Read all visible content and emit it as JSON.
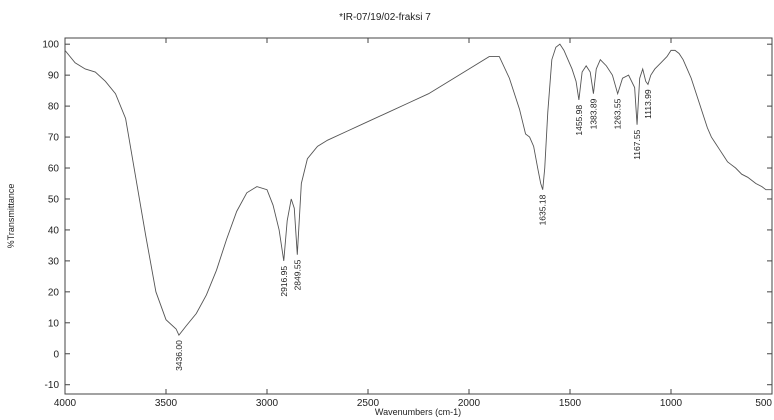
{
  "chart_data": {
    "type": "line",
    "title": "*IR-07/19/02-fraksi 7",
    "xlabel": "Wavenumbers (cm-1)",
    "ylabel": "%Transmittance",
    "xlim": [
      4000,
      500
    ],
    "ylim": [
      -13,
      102
    ],
    "x_reversed": true,
    "grid": false,
    "legend": "none",
    "line_color": "#555555",
    "x_ticks": [
      4000,
      3500,
      3000,
      2500,
      2000,
      1500,
      1000,
      500
    ],
    "x_tick_labels": [
      "4000",
      "3500",
      "3000",
      "2500",
      "2000",
      "1500",
      "1000",
      "500"
    ],
    "y_ticks": [
      100,
      90,
      80,
      70,
      60,
      50,
      40,
      30,
      20,
      10,
      0,
      -10
    ],
    "y_tick_labels": [
      "100",
      "90",
      "80",
      "70",
      "60",
      "50",
      "40",
      "30",
      "20",
      "10",
      "0",
      "-10"
    ],
    "series": [
      {
        "x": [
          4000,
          3950,
          3900,
          3850,
          3800,
          3750,
          3700,
          3650,
          3600,
          3550,
          3500,
          3450,
          3436,
          3400,
          3350,
          3300,
          3250,
          3200,
          3150,
          3100,
          3050,
          3000,
          2970,
          2940,
          2917,
          2900,
          2880,
          2865,
          2850,
          2830,
          2800,
          2750,
          2700,
          2600,
          2500,
          2400,
          2300,
          2200,
          2100,
          2000,
          1900,
          1850,
          1800,
          1750,
          1720,
          1700,
          1680,
          1660,
          1645,
          1635,
          1625,
          1610,
          1590,
          1570,
          1550,
          1530,
          1510,
          1490,
          1470,
          1456,
          1440,
          1420,
          1400,
          1384,
          1370,
          1350,
          1320,
          1290,
          1264,
          1240,
          1210,
          1180,
          1168,
          1155,
          1140,
          1125,
          1114,
          1100,
          1080,
          1050,
          1020,
          1000,
          980,
          960,
          940,
          920,
          900,
          880,
          860,
          840,
          820,
          800,
          780,
          760,
          740,
          720,
          700,
          680,
          650,
          620,
          600,
          580,
          550,
          530,
          500
        ],
        "y": [
          98,
          94,
          92,
          91,
          88,
          84,
          76,
          57,
          38,
          20,
          11,
          8,
          6,
          9,
          13,
          19,
          27,
          37,
          46,
          52,
          54,
          53,
          48,
          40,
          30,
          43,
          50,
          47,
          32,
          55,
          63,
          67,
          69,
          72,
          75,
          78,
          81,
          84,
          88,
          92,
          96,
          96,
          89,
          79,
          71,
          70,
          67,
          60,
          55,
          53,
          60,
          78,
          95,
          99,
          100,
          98,
          95,
          92,
          88,
          82,
          91,
          93,
          91,
          84,
          92,
          95,
          93,
          90,
          84,
          89,
          90,
          86,
          74,
          89,
          92,
          88,
          87,
          90,
          92,
          94,
          96,
          98,
          98,
          97,
          95,
          92,
          89,
          85,
          81,
          77,
          73,
          70,
          68,
          66,
          64,
          62,
          61,
          60,
          58,
          57,
          56,
          55,
          54,
          53,
          53
        ]
      }
    ],
    "annotations": [
      {
        "text": "3436.00",
        "x": 3436,
        "y": 6
      },
      {
        "text": "2916.95",
        "x": 2917,
        "y": 30
      },
      {
        "text": "2849.55",
        "x": 2850,
        "y": 32
      },
      {
        "text": "1635.18",
        "x": 1635,
        "y": 53
      },
      {
        "text": "1455.98",
        "x": 1456,
        "y": 82
      },
      {
        "text": "1383.89",
        "x": 1384,
        "y": 84
      },
      {
        "text": "1263.55",
        "x": 1264,
        "y": 84
      },
      {
        "text": "1167.55",
        "x": 1168,
        "y": 74
      },
      {
        "text": "1113.99",
        "x": 1114,
        "y": 87
      }
    ]
  }
}
